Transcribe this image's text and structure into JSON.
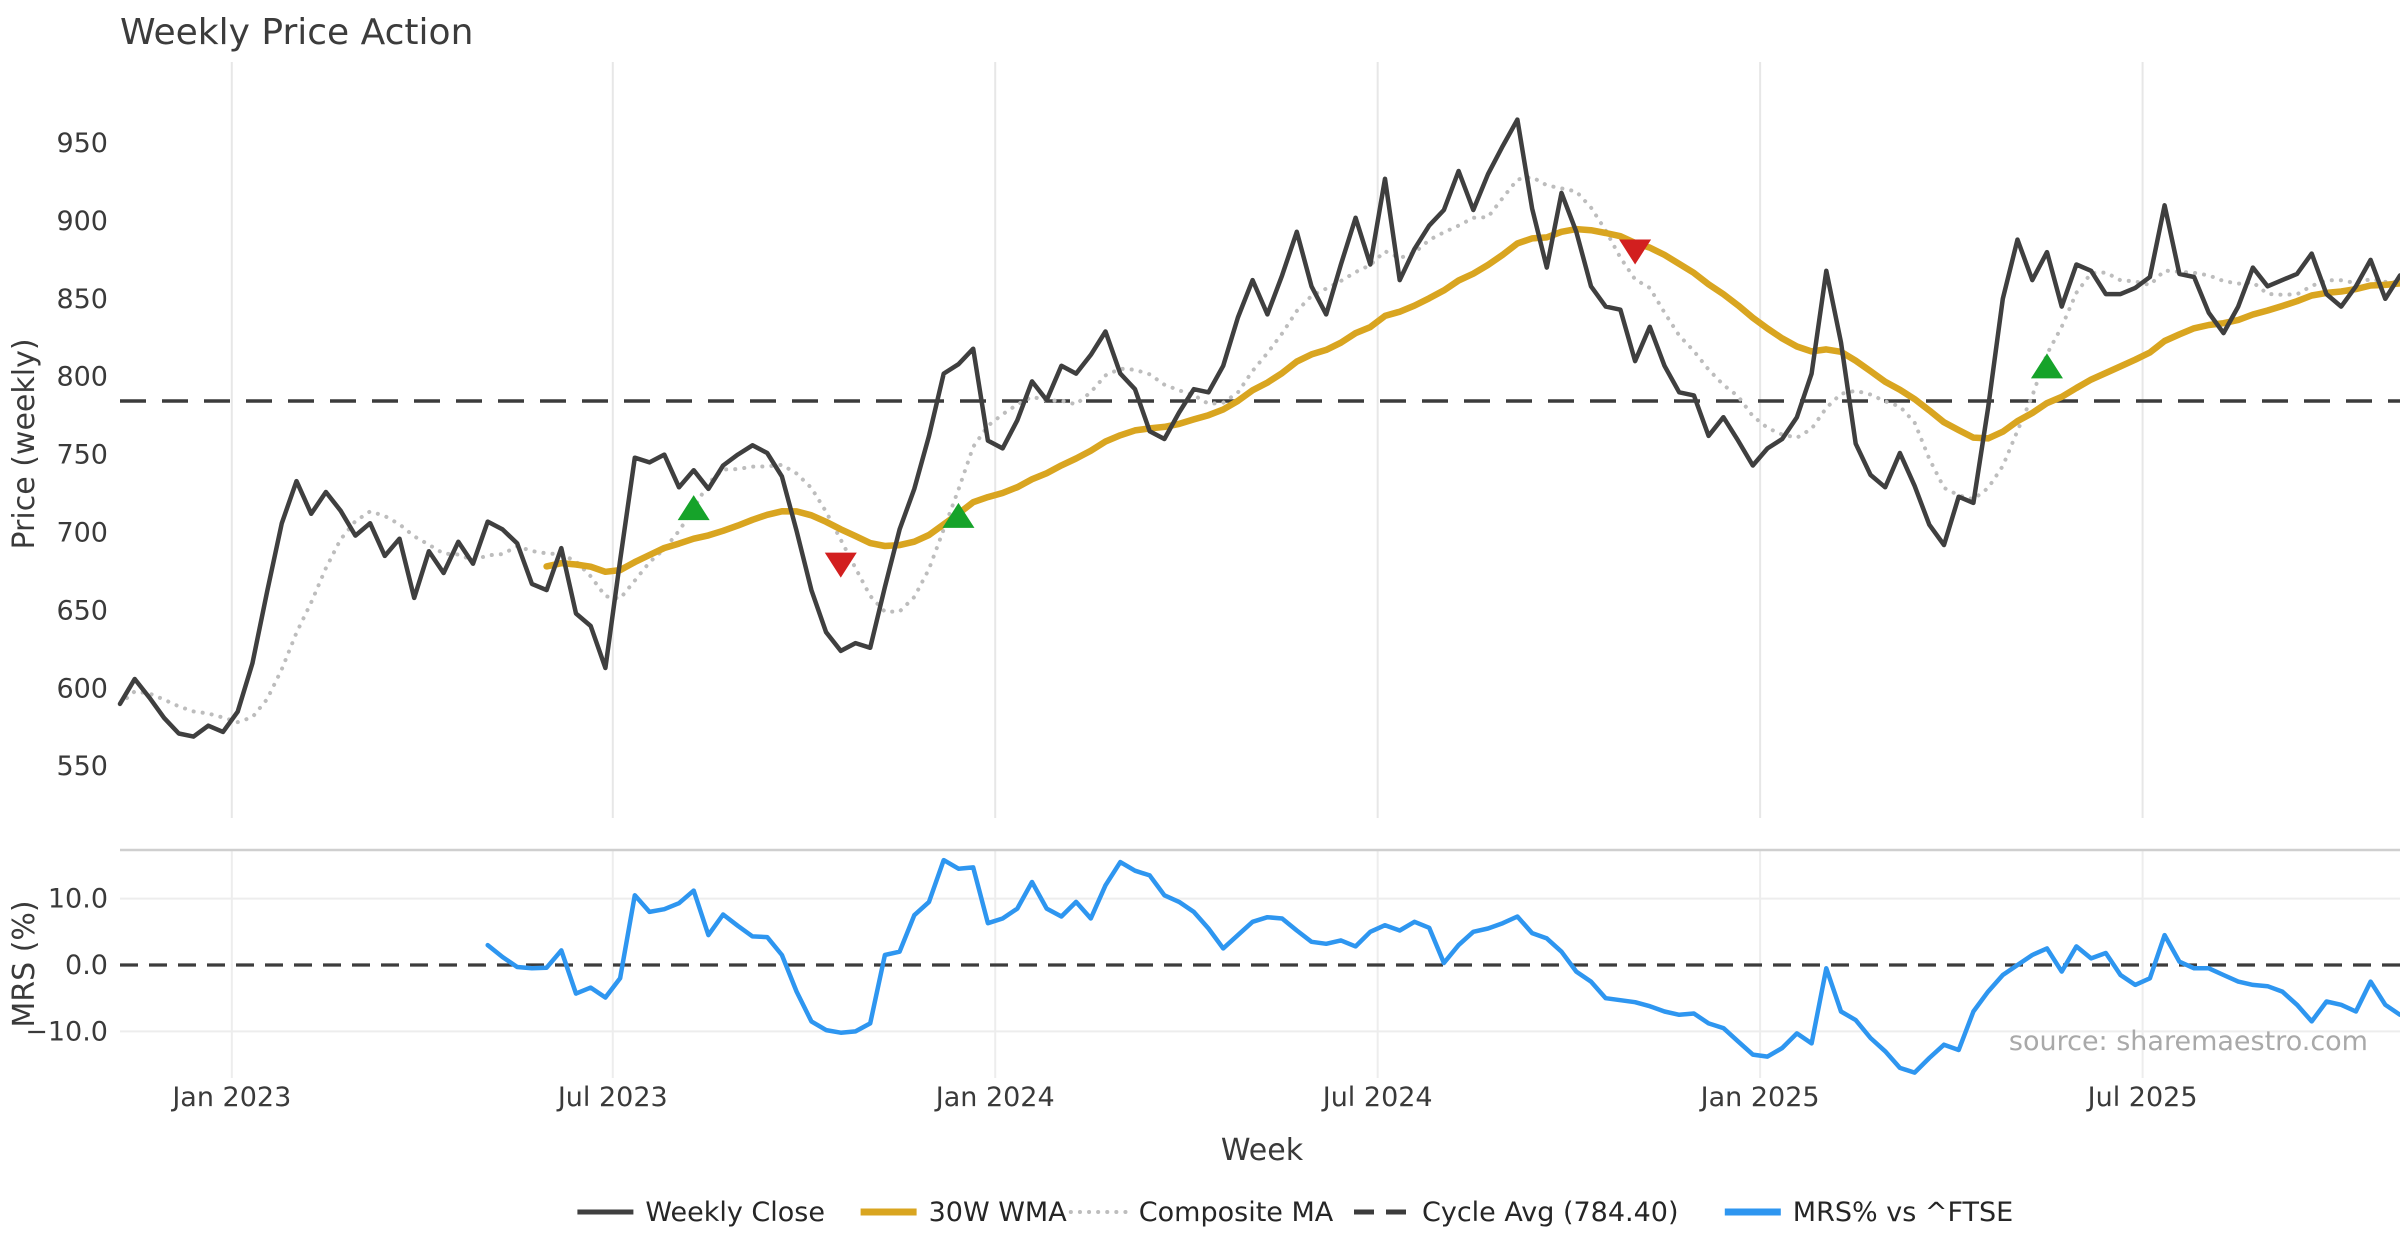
{
  "title": "Weekly Price Action",
  "source_text": "source: sharemaestro.com",
  "colors": {
    "background": "#ffffff",
    "close": "#3f3f3f",
    "wma": "#d9a520",
    "composite": "#bdbdbd",
    "cycle_avg": "#3c3c3c",
    "mrs": "#2e96f0",
    "marker_buy": "#16a32a",
    "marker_sell": "#d21f1f",
    "gridline": "#e7e7e7",
    "mrs_gridline": "#ededed",
    "panel_border": "#cfcfcf",
    "text": "#3a3a3a",
    "source": "#a9a9a9"
  },
  "price_axis": {
    "label": "Price (weekly)",
    "ticks": [
      950,
      900,
      850,
      800,
      750,
      700,
      650,
      600,
      550
    ]
  },
  "mrs_axis": {
    "label": "MRS (%)",
    "ticks": [
      {
        "label": "10.0",
        "value": 10
      },
      {
        "label": "0.0",
        "value": 0
      },
      {
        "label": "−10.0",
        "value": -10
      }
    ]
  },
  "x_axis": {
    "label": "Week",
    "ticks": [
      {
        "label": "Jan 2023",
        "week": 7.6
      },
      {
        "label": "Jul 2023",
        "week": 33.5
      },
      {
        "label": "Jan 2024",
        "week": 59.5
      },
      {
        "label": "Jul 2024",
        "week": 85.5
      },
      {
        "label": "Jan 2025",
        "week": 111.5
      },
      {
        "label": "Jul 2025",
        "week": 137.5
      }
    ]
  },
  "legend": [
    {
      "label": "Weekly Close",
      "color": "#3f3f3f",
      "style": "solid"
    },
    {
      "label": "30W WMA",
      "color": "#d9a520",
      "style": "solid-thick"
    },
    {
      "label": "Composite MA",
      "color": "#bdbdbd",
      "style": "dotted"
    },
    {
      "label": "Cycle Avg (784.40)",
      "color": "#3c3c3c",
      "style": "dashed"
    },
    {
      "label": "MRS% vs ^FTSE",
      "color": "#2e96f0",
      "style": "solid-thick"
    }
  ],
  "chart_data": {
    "type": "line",
    "panels": [
      {
        "name": "price",
        "ylabel": "Price (weekly)",
        "ylim": [
          516,
          1002
        ]
      },
      {
        "name": "mrs",
        "ylabel": "MRS (%)",
        "ylim": [
          -17.0,
          17.3
        ]
      }
    ],
    "x_start_week": 0,
    "x_end_week": 155,
    "week0_date": "2022-11-14",
    "cycle_avg_value": 784.4,
    "mrs_zero_line": 0.0,
    "wma_window": 30,
    "composite_window": 7,
    "weekly_close": [
      590,
      606,
      594,
      581,
      571,
      569,
      576,
      572,
      585,
      616,
      662,
      706,
      733,
      712,
      726,
      714,
      698,
      706,
      685,
      696,
      658,
      688,
      674,
      694,
      680,
      707,
      702,
      693,
      667,
      663,
      690,
      648,
      640,
      613,
      682,
      748,
      745,
      750,
      729,
      740,
      728,
      743,
      750,
      756,
      751,
      736,
      701,
      663,
      636,
      624,
      629,
      626,
      665,
      702,
      728,
      762,
      802,
      808,
      818,
      759,
      754,
      772,
      797,
      785,
      807,
      802,
      814,
      829,
      802,
      792,
      765,
      760,
      777,
      792,
      790,
      807,
      838,
      862,
      840,
      865,
      893,
      858,
      840,
      872,
      902,
      872,
      927,
      862,
      882,
      897,
      907,
      932,
      907,
      930,
      948,
      965,
      908,
      870,
      918,
      893,
      858,
      845,
      843,
      810,
      832,
      807,
      790,
      788,
      762,
      774,
      759,
      743,
      754,
      760,
      774,
      802,
      868,
      822,
      757,
      737,
      729,
      751,
      730,
      705,
      692,
      723,
      719,
      780,
      850,
      888,
      862,
      880,
      845,
      872,
      868,
      853,
      853,
      857,
      864,
      910,
      866,
      864,
      841,
      828,
      845,
      870,
      858,
      862,
      866,
      879,
      853,
      845,
      858,
      875,
      850,
      865
    ],
    "mrs_start_week": 25,
    "mrs_values": [
      3.0,
      1.2,
      -0.3,
      -0.5,
      -0.4,
      2.2,
      -4.3,
      -3.4,
      -4.9,
      -2.0,
      10.5,
      8.0,
      8.4,
      9.3,
      11.2,
      4.5,
      7.6,
      5.9,
      4.3,
      4.2,
      1.5,
      -4.0,
      -8.5,
      -9.8,
      -10.2,
      -10.0,
      -8.8,
      1.5,
      2.0,
      7.5,
      9.5,
      15.8,
      14.5,
      14.7,
      6.3,
      7.0,
      8.5,
      12.5,
      8.5,
      7.3,
      9.5,
      7.0,
      12.0,
      15.5,
      14.2,
      13.5,
      10.5,
      9.5,
      8.0,
      5.5,
      2.5,
      4.5,
      6.5,
      7.2,
      7.0,
      5.2,
      3.5,
      3.2,
      3.7,
      2.8,
      5.0,
      6.0,
      5.2,
      6.5,
      5.6,
      0.3,
      3.0,
      5.0,
      5.5,
      6.3,
      7.3,
      4.8,
      4.0,
      2.0,
      -1.0,
      -2.5,
      -5.0,
      -5.3,
      -5.6,
      -6.2,
      -7.0,
      -7.5,
      -7.3,
      -8.8,
      -9.5,
      -11.5,
      -13.5,
      -13.8,
      -12.5,
      -10.3,
      -11.8,
      -0.5,
      -7.0,
      -8.3,
      -11.0,
      -13.0,
      -15.5,
      -16.2,
      -14.0,
      -12.0,
      -12.8,
      -7.0,
      -4.0,
      -1.5,
      0.0,
      1.5,
      2.5,
      -1.0,
      2.8,
      1.0,
      1.8,
      -1.5,
      -3.0,
      -2.0,
      4.5,
      0.5,
      -0.5,
      -0.5,
      -1.5,
      -2.5,
      -3.0,
      -3.2,
      -4.0,
      -6.0,
      -8.5,
      -5.5,
      -6.0,
      -7.0,
      -2.5,
      -6.0,
      -7.5
    ],
    "markers": {
      "buy": [
        {
          "week": 39,
          "price": 715
        },
        {
          "week": 57,
          "price": 710
        },
        {
          "week": 131,
          "price": 806
        }
      ],
      "sell": [
        {
          "week": 49,
          "price": 680
        },
        {
          "week": 103,
          "price": 881
        }
      ]
    }
  }
}
